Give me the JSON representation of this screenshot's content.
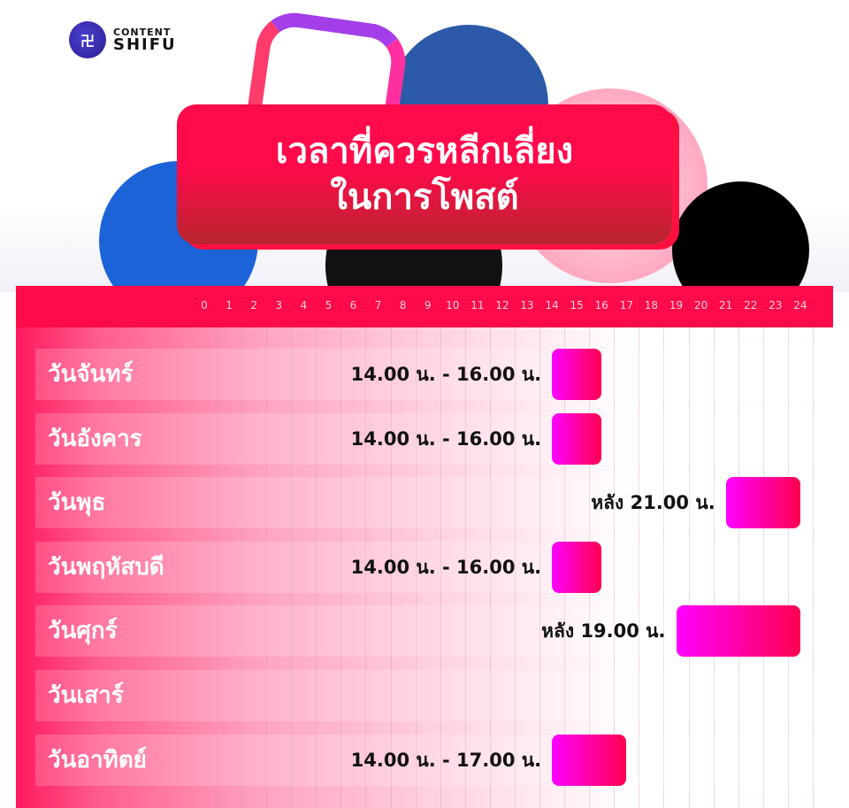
{
  "brand": {
    "line1": "CONTENT",
    "line2": "SHIFU"
  },
  "title": {
    "line1": "เวลาที่ควรหลีกเลี่ยง",
    "line2": "ในการโพสต์"
  },
  "colors": {
    "band": "#ff0a4a",
    "bar_start": "#ff00ff",
    "bar_end": "#ff0050"
  },
  "chart_data": {
    "type": "bar",
    "orientation": "horizontal-range",
    "xlim": [
      0,
      24
    ],
    "x_ticks": [
      "0",
      "1",
      "2",
      "3",
      "4",
      "5",
      "6",
      "7",
      "8",
      "9",
      "10",
      "11",
      "12",
      "13",
      "14",
      "15",
      "16",
      "17",
      "18",
      "19",
      "20",
      "21",
      "22",
      "23",
      "24"
    ],
    "grid": true,
    "rows": [
      {
        "day": "วันจันทร์",
        "start": 14,
        "end": 16,
        "label": "14.00 น. - 16.00 น."
      },
      {
        "day": "วันอังคาร",
        "start": 14,
        "end": 16,
        "label": "14.00 น. - 16.00 น."
      },
      {
        "day": "วันพุธ",
        "start": 21,
        "end": 24,
        "label": "หลัง 21.00 น."
      },
      {
        "day": "วันพฤหัสบดี",
        "start": 14,
        "end": 16,
        "label": "14.00 น. - 16.00 น."
      },
      {
        "day": "วันศุกร์",
        "start": 19,
        "end": 24,
        "label": "หลัง 19.00 น."
      },
      {
        "day": "วันเสาร์",
        "start": null,
        "end": null,
        "label": ""
      },
      {
        "day": "วันอาทิตย์",
        "start": 14,
        "end": 17,
        "label": "14.00 น. - 17.00 น."
      }
    ]
  }
}
